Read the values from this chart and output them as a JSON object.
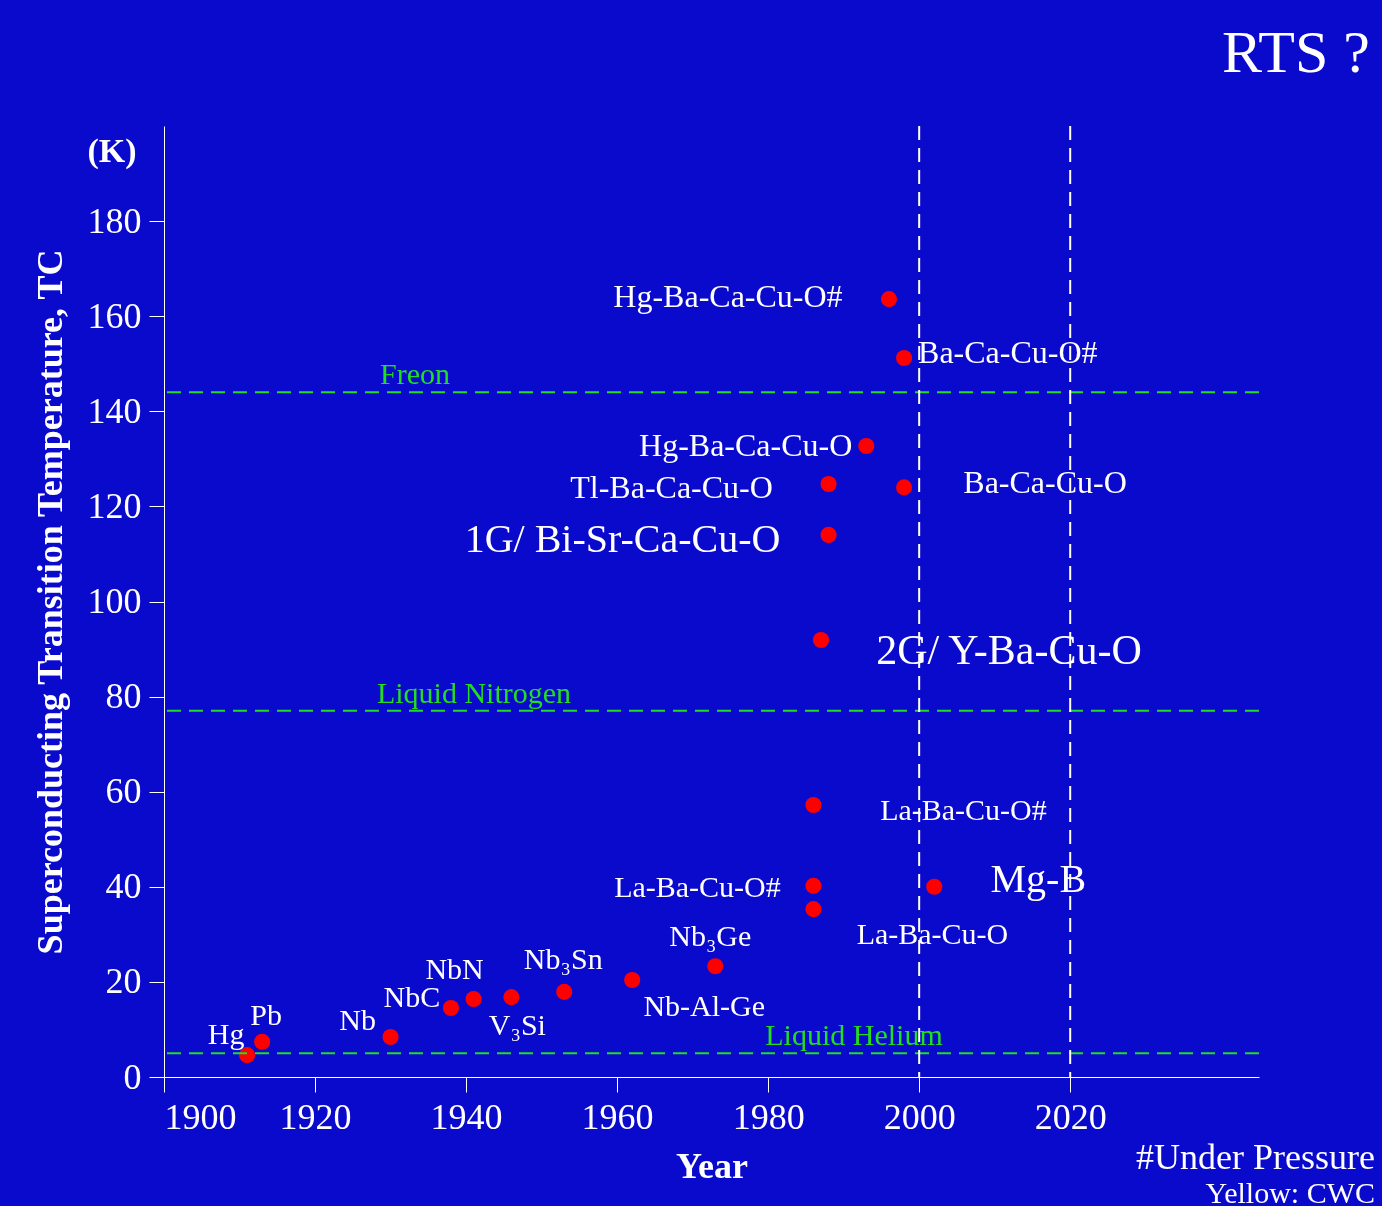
{
  "chart_data": {
    "type": "scatter",
    "title": "RTS ?",
    "xlabel": "Year",
    "ylabel": "Superconducting Transition Temperature, TC",
    "xlim": [
      1900,
      2045
    ],
    "xticks": [
      1900,
      1920,
      1940,
      1960,
      1980,
      2000,
      2020
    ],
    "ylim": [
      0,
      200
    ],
    "yticks": [
      0,
      20,
      40,
      60,
      80,
      100,
      120,
      140,
      160,
      180
    ],
    "marker": "circle",
    "grid": false,
    "series": [
      {
        "name": "Hg",
        "color": "#ff0000",
        "x": [
          1911
        ],
        "values": [
          4.6
        ]
      },
      {
        "name": "Pb",
        "color": "#ff0000",
        "x": [
          1913
        ],
        "values": [
          7.4
        ]
      },
      {
        "name": "Nb",
        "color": "#ff0000",
        "x": [
          1930
        ],
        "values": [
          8.4
        ]
      },
      {
        "name": "NbC",
        "color": "#ff0000",
        "x": [
          1938
        ],
        "values": [
          14.5
        ]
      },
      {
        "name": "NbN",
        "color": "#ff0000",
        "x": [
          1941
        ],
        "values": [
          16.4
        ]
      },
      {
        "name": "V₃Si",
        "color": "#ff0000",
        "x": [
          1946
        ],
        "values": [
          16.8
        ]
      },
      {
        "name": "Nb₃Sn",
        "color": "#ff0000",
        "x": [
          1953
        ],
        "values": [
          17.9
        ]
      },
      {
        "name": "Nb-Al-Ge",
        "color": "#ff0000",
        "x": [
          1962
        ],
        "values": [
          20.4
        ]
      },
      {
        "name": "Nb₃Ge",
        "color": "#ff0000",
        "x": [
          1973
        ],
        "values": [
          23.3
        ]
      },
      {
        "name": "La-Ba-Cu-O",
        "color": "#ff0000",
        "x": [
          1986
        ],
        "values": [
          35.3
        ]
      },
      {
        "name": "La-Ba-Cu-O#",
        "color": "#ff0000",
        "x": [
          1986
        ],
        "values": [
          40.2
        ]
      },
      {
        "name": "La-Ba-Cu-O#",
        "color": "#ff0000",
        "x": [
          1986
        ],
        "values": [
          57.2
        ]
      },
      {
        "name": "Mg-B",
        "color": "#ff0000",
        "x": [
          2002
        ],
        "values": [
          40
        ]
      },
      {
        "name": "2G/ Y-Ba-Cu-O",
        "color": "#ff0000",
        "x": [
          1987
        ],
        "values": [
          91.9
        ]
      },
      {
        "name": "1G/ Bi-Sr-Ca-Cu-O",
        "color": "#ff0000",
        "x": [
          1988
        ],
        "values": [
          114
        ]
      },
      {
        "name": "Tl-Ba-Ca-Cu-O",
        "color": "#ff0000",
        "x": [
          1988
        ],
        "values": [
          124.7
        ]
      },
      {
        "name": "Ba-Ca-Cu-O",
        "color": "#ff0000",
        "x": [
          1998
        ],
        "values": [
          124
        ]
      },
      {
        "name": "Hg-Ba-Ca-Cu-O",
        "color": "#ff0000",
        "x": [
          1993
        ],
        "values": [
          132.7
        ]
      },
      {
        "name": "Ba-Ca-Cu-O#",
        "color": "#ff0000",
        "x": [
          1998
        ],
        "values": [
          151.2
        ]
      },
      {
        "name": "Hg-Ba-Ca-Cu-O#",
        "color": "#ff0000",
        "x": [
          1996
        ],
        "values": [
          163.6
        ]
      }
    ],
    "ref_lines": [
      {
        "axis": "y",
        "value": 144,
        "label": "Freon",
        "color": "#22dd22",
        "line_style": "dashed"
      },
      {
        "axis": "y",
        "value": 77,
        "label": "Liquid Nitrogen",
        "color": "#22dd22",
        "line_style": "dashed"
      },
      {
        "axis": "y",
        "value": 5,
        "label": "Liquid Helium",
        "color": "#22dd22",
        "line_style": "dashed"
      },
      {
        "axis": "x",
        "value": 2000,
        "color": "#ffffff",
        "line_style": "dashed"
      },
      {
        "axis": "x",
        "value": 2020,
        "color": "#ffffff",
        "line_style": "dashed"
      }
    ],
    "annotations": [
      "(K)",
      "#Under Pressure",
      "Yellow: CWC"
    ]
  }
}
